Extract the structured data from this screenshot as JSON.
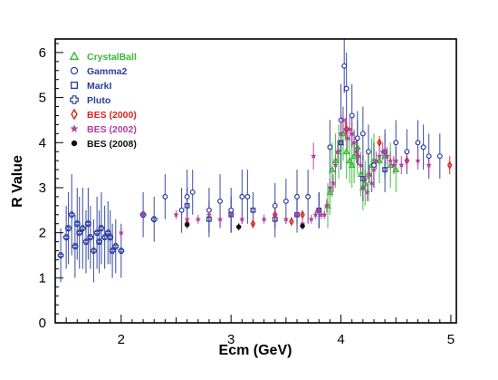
{
  "chart_data": {
    "type": "scatter",
    "title": "",
    "xlabel": "Ecm (GeV)",
    "ylabel": "R Value",
    "xlim": [
      1.4,
      5.05
    ],
    "ylim": [
      0,
      6.3
    ],
    "xticks": [
      2,
      3,
      4,
      5
    ],
    "yticks": [
      0,
      1,
      2,
      3,
      4,
      5,
      6
    ],
    "grid": false,
    "legend_position": "top-left",
    "series": [
      {
        "name": "CrystalBall",
        "marker": "triangle",
        "color": "#33bb33",
        "x": [
          3.88,
          3.9,
          3.92,
          3.95,
          3.98,
          4.0,
          4.02,
          4.05,
          4.08,
          4.1,
          4.12,
          4.15,
          4.18,
          4.2,
          4.22,
          4.25,
          4.28,
          4.3,
          4.35,
          4.4,
          4.45,
          4.5
        ],
        "y": [
          2.6,
          2.9,
          3.4,
          3.6,
          3.8,
          4.0,
          4.2,
          3.8,
          3.6,
          3.5,
          3.7,
          3.9,
          3.3,
          3.0,
          3.1,
          3.3,
          3.5,
          3.6,
          3.6,
          3.7,
          3.5,
          3.4
        ],
        "err": [
          0.5,
          0.5,
          0.6,
          0.6,
          0.6,
          0.6,
          0.6,
          0.6,
          0.5,
          0.5,
          0.6,
          0.6,
          0.5,
          0.5,
          0.5,
          0.6,
          0.6,
          0.6,
          0.5,
          0.5,
          0.5,
          0.5
        ]
      },
      {
        "name": "Gamma2",
        "marker": "circle",
        "color": "#2a3d9e",
        "x": [
          2.4,
          2.55,
          2.6,
          2.65,
          2.8,
          2.9,
          3.0,
          3.1,
          3.15,
          3.4,
          3.5,
          3.6,
          3.7,
          3.8,
          3.9,
          4.0,
          4.03,
          4.05,
          4.1,
          4.15,
          4.2,
          4.25,
          4.3,
          4.4,
          4.5,
          4.6,
          4.7,
          4.75,
          4.8,
          4.9
        ],
        "y": [
          2.8,
          2.5,
          2.8,
          2.9,
          2.5,
          2.7,
          2.5,
          2.8,
          2.8,
          2.6,
          2.7,
          2.8,
          2.8,
          2.5,
          3.9,
          4.5,
          5.7,
          5.2,
          4.6,
          4.1,
          4.2,
          3.8,
          3.5,
          3.8,
          4.0,
          3.8,
          4.0,
          3.9,
          3.7,
          3.7
        ],
        "err": [
          0.5,
          0.5,
          0.6,
          0.5,
          0.5,
          0.6,
          0.5,
          0.6,
          0.6,
          0.5,
          0.5,
          0.6,
          0.6,
          0.4,
          0.6,
          0.8,
          0.6,
          0.8,
          0.7,
          0.6,
          0.6,
          0.6,
          0.5,
          0.5,
          0.5,
          0.5,
          0.5,
          0.5,
          0.5,
          0.5
        ]
      },
      {
        "name": "MarkI",
        "marker": "square",
        "color": "#2a3d9e",
        "x": [
          2.6,
          2.8,
          3.0,
          3.2,
          3.4,
          3.6,
          3.8,
          4.0,
          4.2,
          4.4
        ],
        "y": [
          2.6,
          2.3,
          2.4,
          2.5,
          2.3,
          2.4,
          2.5,
          4.0,
          3.2,
          3.4
        ],
        "err": [
          0.4,
          0.4,
          0.4,
          0.4,
          0.4,
          0.4,
          0.4,
          0.6,
          0.5,
          0.5
        ]
      },
      {
        "name": "Pluto",
        "marker": "cross",
        "color": "#2a3d9e",
        "x": [
          1.45,
          1.5,
          1.52,
          1.55,
          1.58,
          1.6,
          1.62,
          1.65,
          1.68,
          1.7,
          1.72,
          1.75,
          1.78,
          1.8,
          1.82,
          1.85,
          1.88,
          1.9,
          1.92,
          1.95,
          2.0,
          2.2,
          2.3
        ],
        "y": [
          1.5,
          1.9,
          2.1,
          2.4,
          1.7,
          2.2,
          2.0,
          2.1,
          1.8,
          2.2,
          1.9,
          1.6,
          2.0,
          1.8,
          2.1,
          1.9,
          2.0,
          1.9,
          1.6,
          1.7,
          1.6,
          2.4,
          2.3
        ],
        "err": [
          0.6,
          0.7,
          0.8,
          0.9,
          0.7,
          0.8,
          0.8,
          0.9,
          0.7,
          0.8,
          0.7,
          0.7,
          0.8,
          0.7,
          0.8,
          0.7,
          0.7,
          0.6,
          0.6,
          0.6,
          0.6,
          0.5,
          0.5
        ]
      },
      {
        "name": "BES (2000)",
        "marker": "diamond",
        "color": "#dd2222",
        "x": [
          2.6,
          3.2,
          3.4,
          3.55,
          3.65,
          4.05,
          4.35,
          4.6,
          4.99
        ],
        "y": [
          2.2,
          2.2,
          2.4,
          2.25,
          2.4,
          4.3,
          4.0,
          3.6,
          3.5
        ],
        "err": [
          0.1,
          0.1,
          0.12,
          0.1,
          0.1,
          0.15,
          0.15,
          0.15,
          0.2
        ]
      },
      {
        "name": "BES (2002)",
        "marker": "star",
        "color": "#b040a0",
        "x": [
          2.0,
          2.2,
          2.5,
          2.6,
          2.7,
          2.8,
          2.9,
          3.0,
          3.1,
          3.3,
          3.4,
          3.5,
          3.6,
          3.65,
          3.73,
          3.75,
          3.77,
          3.8,
          3.82,
          3.85,
          3.87,
          3.9,
          3.93,
          3.95,
          3.97,
          4.0,
          4.02,
          4.04,
          4.06,
          4.08,
          4.1,
          4.12,
          4.14,
          4.16,
          4.18,
          4.2,
          4.22,
          4.24,
          4.26,
          4.28,
          4.3,
          4.32,
          4.35,
          4.38,
          4.4,
          4.42,
          4.45,
          4.48,
          4.5,
          4.55,
          4.6,
          4.7,
          4.8
        ],
        "y": [
          2.0,
          2.4,
          2.4,
          2.3,
          2.3,
          2.4,
          2.3,
          2.4,
          2.3,
          2.3,
          2.4,
          2.3,
          2.4,
          2.2,
          2.3,
          3.7,
          2.4,
          2.5,
          2.4,
          2.4,
          2.6,
          3.0,
          3.1,
          3.5,
          3.8,
          4.2,
          4.5,
          4.3,
          4.1,
          4.3,
          4.2,
          4.0,
          3.8,
          3.7,
          3.5,
          3.0,
          3.2,
          2.9,
          3.3,
          3.1,
          3.4,
          3.6,
          3.7,
          3.8,
          3.8,
          3.7,
          3.6,
          3.5,
          3.6,
          3.5,
          3.6,
          3.6,
          3.5
        ],
        "err": [
          0.1,
          0.1,
          0.1,
          0.1,
          0.1,
          0.1,
          0.1,
          0.1,
          0.1,
          0.1,
          0.1,
          0.1,
          0.1,
          0.1,
          0.1,
          0.3,
          0.1,
          0.1,
          0.1,
          0.1,
          0.15,
          0.2,
          0.2,
          0.2,
          0.25,
          0.25,
          0.3,
          0.25,
          0.25,
          0.25,
          0.25,
          0.25,
          0.25,
          0.2,
          0.2,
          0.2,
          0.2,
          0.2,
          0.2,
          0.2,
          0.2,
          0.2,
          0.2,
          0.2,
          0.2,
          0.2,
          0.2,
          0.2,
          0.2,
          0.2,
          0.2,
          0.2,
          0.2
        ]
      },
      {
        "name": "BES (2008)",
        "marker": "dot",
        "color": "#111111",
        "x": [
          2.6,
          3.07,
          3.65
        ],
        "y": [
          2.18,
          2.13,
          2.15
        ],
        "err": [
          0.08,
          0.08,
          0.08
        ]
      }
    ]
  }
}
